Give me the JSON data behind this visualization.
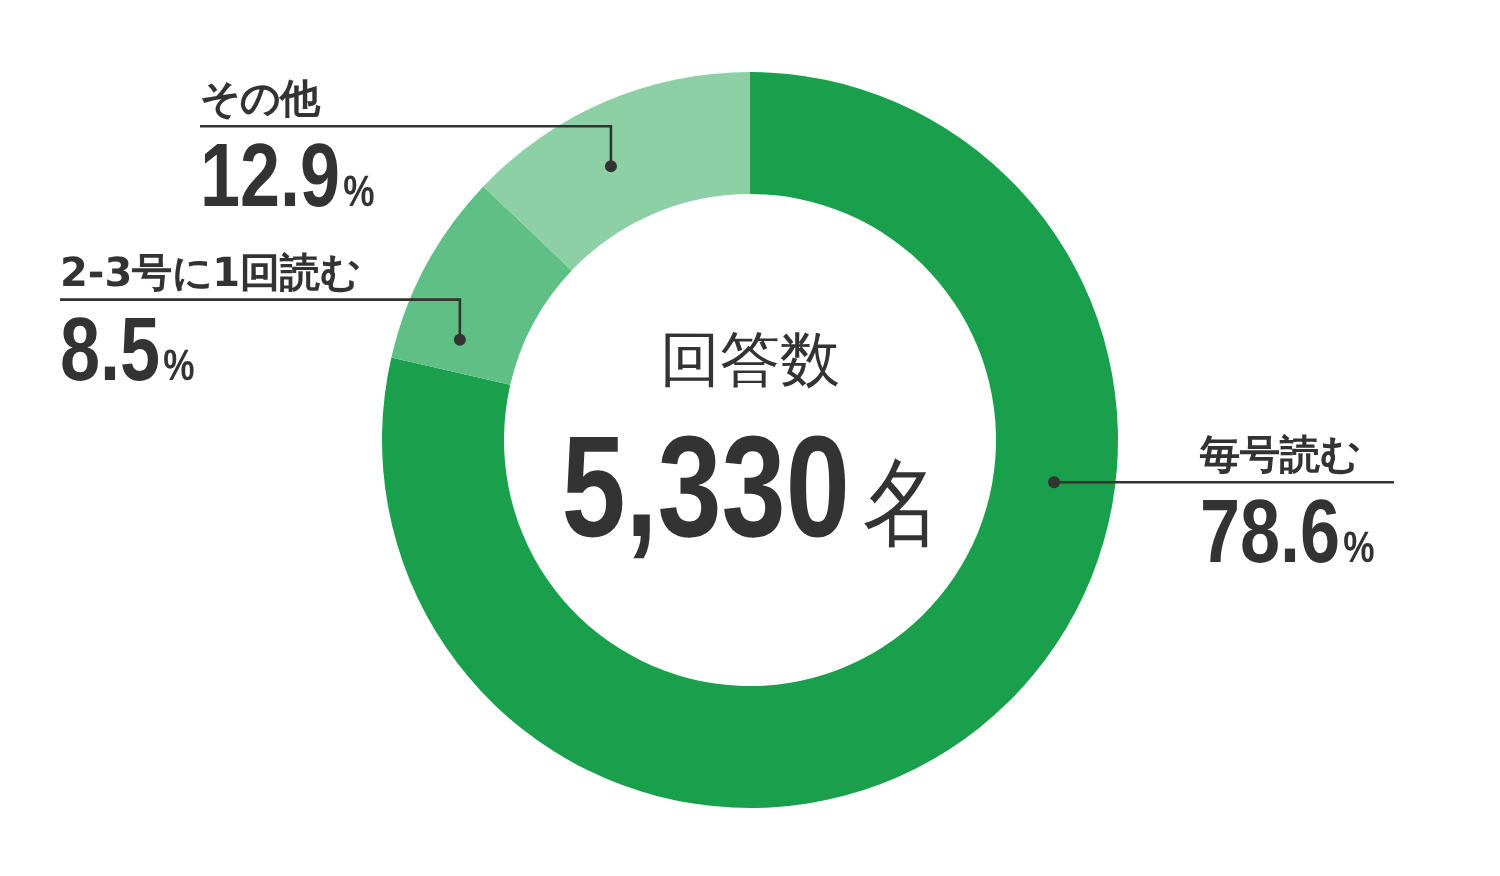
{
  "chart_data": {
    "type": "donut",
    "categories": [
      "毎号読む",
      "2-3号に1回読む",
      "その他"
    ],
    "values": [
      78.6,
      8.5,
      12.9
    ],
    "colors": [
      "#1aa04c",
      "#5fbf85",
      "#8dd0a6"
    ],
    "value_labels": [
      "78.6%",
      "8.5%",
      "12.9%"
    ],
    "annotations": [
      "回答数",
      "5,330名"
    ]
  }
}
